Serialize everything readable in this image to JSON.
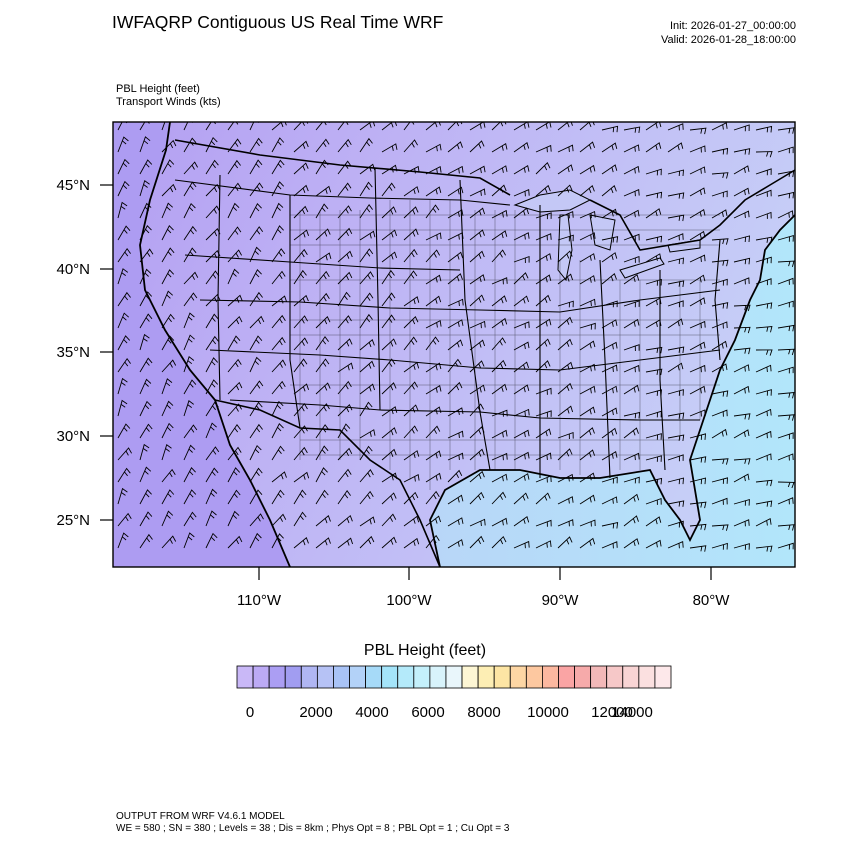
{
  "header": {
    "title": "IWFAQRP Contiguous US Real Time WRF",
    "init": "Init: 2026-01-27_00:00:00",
    "valid": "Valid: 2026-01-28_18:00:00",
    "field1": "PBL Height   (feet)",
    "field2": "Transport Winds   (kts)"
  },
  "map": {
    "lat_labels": [
      "45°N",
      "40°N",
      "35°N",
      "30°N",
      "25°N"
    ],
    "lon_labels": [
      "110°W",
      "100°W",
      "90°W",
      "80°W"
    ],
    "colors": {
      "land": "#bcb4f4",
      "west_tint": "#b4a2f2",
      "ocean_gulf": "#b8dcf8",
      "ocean_atlantic": "#b4e6fa",
      "pacific": "#ad9cf0"
    }
  },
  "colorbar": {
    "title": "PBL Height  (feet)",
    "tick_labels": [
      "0",
      "2000",
      "4000",
      "6000",
      "8000",
      "10000",
      "12000",
      "14000"
    ],
    "colors": [
      "#c9b8f7",
      "#bcaaf5",
      "#ab9ef3",
      "#a19df1",
      "#b0b6f3",
      "#b6c2f5",
      "#a9c3f6",
      "#b3d2f8",
      "#a6daf8",
      "#a4e4f9",
      "#b4eafa",
      "#c4f0fb",
      "#d8f3fb",
      "#e9f6fb",
      "#fdf6d4",
      "#fdeeb4",
      "#fde5a4",
      "#fdd6a4",
      "#fdc8a0",
      "#fcb8a0",
      "#faa4a4",
      "#f6aaaa",
      "#f2b8b8",
      "#f6c8c8",
      "#f8d4d4",
      "#fbe0e0",
      "#fde8ea"
    ]
  },
  "footer": {
    "line1": "OUTPUT FROM WRF V4.6.1 MODEL",
    "line2": "WE = 580 ; SN = 380 ; Levels = 38 ; Dis = 8km ; Phys Opt = 8 ; PBL Opt = 1 ; Cu Opt = 3"
  }
}
